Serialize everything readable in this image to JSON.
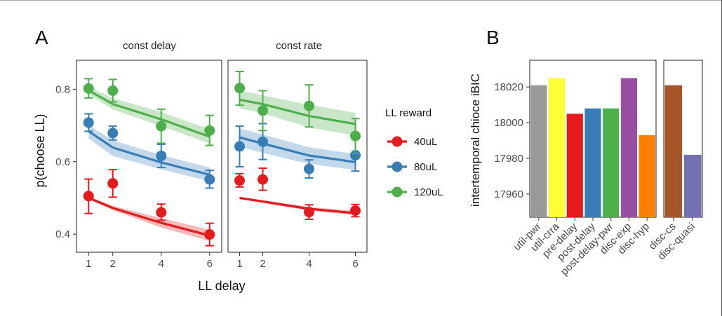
{
  "chart_data": [
    {
      "type": "line",
      "panel_label": "A",
      "facets": [
        "const delay",
        "const rate"
      ],
      "xlabel": "LL delay",
      "ylabel": "p(choose LL)",
      "x_ticks": [
        1,
        2,
        4,
        6
      ],
      "y_ticks": [
        0.4,
        0.6,
        0.8
      ],
      "xlim": [
        0.5,
        6.5
      ],
      "ylim": [
        0.35,
        0.88
      ],
      "legend_title": "LL reward",
      "legend_position": "right",
      "series": [
        {
          "name": "40uL",
          "color": "#e41a1c",
          "facets": [
            {
              "facet": "const delay",
              "points": [
                {
                  "x": 1,
                  "y": 0.505,
                  "lo": 0.457,
                  "hi": 0.552
                },
                {
                  "x": 2,
                  "y": 0.54,
                  "lo": 0.502,
                  "hi": 0.578
                },
                {
                  "x": 4,
                  "y": 0.46,
                  "lo": 0.438,
                  "hi": 0.483
                },
                {
                  "x": 6,
                  "y": 0.399,
                  "lo": 0.368,
                  "hi": 0.43
                }
              ],
              "fit": [
                {
                  "x": 1,
                  "y": 0.5,
                  "lo": 0.497,
                  "hi": 0.504
                },
                {
                  "x": 2,
                  "y": 0.472,
                  "lo": 0.466,
                  "hi": 0.478
                },
                {
                  "x": 4,
                  "y": 0.431,
                  "lo": 0.418,
                  "hi": 0.444
                },
                {
                  "x": 6,
                  "y": 0.396,
                  "lo": 0.381,
                  "hi": 0.412
                }
              ]
            },
            {
              "facet": "const rate",
              "points": [
                {
                  "x": 1,
                  "y": 0.548,
                  "lo": 0.53,
                  "hi": 0.567
                },
                {
                  "x": 2,
                  "y": 0.551,
                  "lo": 0.521,
                  "hi": 0.582
                },
                {
                  "x": 4,
                  "y": 0.461,
                  "lo": 0.441,
                  "hi": 0.481
                },
                {
                  "x": 6,
                  "y": 0.465,
                  "lo": 0.448,
                  "hi": 0.482
                }
              ],
              "fit": [
                {
                  "x": 1,
                  "y": 0.5,
                  "lo": 0.497,
                  "hi": 0.503
                },
                {
                  "x": 2,
                  "y": 0.49,
                  "lo": 0.486,
                  "hi": 0.494
                },
                {
                  "x": 4,
                  "y": 0.47,
                  "lo": 0.465,
                  "hi": 0.475
                },
                {
                  "x": 6,
                  "y": 0.458,
                  "lo": 0.452,
                  "hi": 0.464
                }
              ]
            }
          ]
        },
        {
          "name": "80uL",
          "color": "#377eb8",
          "facets": [
            {
              "facet": "const delay",
              "points": [
                {
                  "x": 1,
                  "y": 0.708,
                  "lo": 0.684,
                  "hi": 0.732
                },
                {
                  "x": 2,
                  "y": 0.679,
                  "lo": 0.66,
                  "hi": 0.698
                },
                {
                  "x": 4,
                  "y": 0.616,
                  "lo": 0.584,
                  "hi": 0.648
                },
                {
                  "x": 6,
                  "y": 0.551,
                  "lo": 0.527,
                  "hi": 0.576
                }
              ],
              "fit": [
                {
                  "x": 1,
                  "y": 0.684,
                  "lo": 0.664,
                  "hi": 0.701
                },
                {
                  "x": 2,
                  "y": 0.639,
                  "lo": 0.616,
                  "hi": 0.659
                },
                {
                  "x": 4,
                  "y": 0.598,
                  "lo": 0.579,
                  "hi": 0.618
                },
                {
                  "x": 6,
                  "y": 0.564,
                  "lo": 0.546,
                  "hi": 0.584
                }
              ]
            },
            {
              "facet": "const rate",
              "points": [
                {
                  "x": 1,
                  "y": 0.642,
                  "lo": 0.586,
                  "hi": 0.698
                },
                {
                  "x": 2,
                  "y": 0.655,
                  "lo": 0.606,
                  "hi": 0.705
                },
                {
                  "x": 4,
                  "y": 0.58,
                  "lo": 0.555,
                  "hi": 0.605
                },
                {
                  "x": 6,
                  "y": 0.618,
                  "lo": 0.574,
                  "hi": 0.663
                }
              ],
              "fit": [
                {
                  "x": 1,
                  "y": 0.667,
                  "lo": 0.641,
                  "hi": 0.692
                },
                {
                  "x": 2,
                  "y": 0.65,
                  "lo": 0.624,
                  "hi": 0.675
                },
                {
                  "x": 4,
                  "y": 0.617,
                  "lo": 0.594,
                  "hi": 0.64
                },
                {
                  "x": 6,
                  "y": 0.599,
                  "lo": 0.577,
                  "hi": 0.621
                }
              ]
            }
          ]
        },
        {
          "name": "120uL",
          "color": "#4daf4a",
          "facets": [
            {
              "facet": "const delay",
              "points": [
                {
                  "x": 1,
                  "y": 0.802,
                  "lo": 0.776,
                  "hi": 0.829
                },
                {
                  "x": 2,
                  "y": 0.796,
                  "lo": 0.765,
                  "hi": 0.827
                },
                {
                  "x": 4,
                  "y": 0.698,
                  "lo": 0.651,
                  "hi": 0.745
                },
                {
                  "x": 6,
                  "y": 0.686,
                  "lo": 0.645,
                  "hi": 0.728
                }
              ],
              "fit": [
                {
                  "x": 1,
                  "y": 0.797,
                  "lo": 0.786,
                  "hi": 0.808
                },
                {
                  "x": 2,
                  "y": 0.759,
                  "lo": 0.744,
                  "hi": 0.775
                },
                {
                  "x": 4,
                  "y": 0.717,
                  "lo": 0.698,
                  "hi": 0.737
                },
                {
                  "x": 6,
                  "y": 0.669,
                  "lo": 0.65,
                  "hi": 0.689
                }
              ]
            },
            {
              "facet": "const rate",
              "points": [
                {
                  "x": 1,
                  "y": 0.803,
                  "lo": 0.756,
                  "hi": 0.849
                },
                {
                  "x": 2,
                  "y": 0.741,
                  "lo": 0.686,
                  "hi": 0.796
                },
                {
                  "x": 4,
                  "y": 0.754,
                  "lo": 0.696,
                  "hi": 0.812
                },
                {
                  "x": 6,
                  "y": 0.671,
                  "lo": 0.623,
                  "hi": 0.719
                }
              ],
              "fit": [
                {
                  "x": 1,
                  "y": 0.771,
                  "lo": 0.747,
                  "hi": 0.797
                },
                {
                  "x": 2,
                  "y": 0.759,
                  "lo": 0.734,
                  "hi": 0.783
                },
                {
                  "x": 4,
                  "y": 0.726,
                  "lo": 0.694,
                  "hi": 0.757
                },
                {
                  "x": 6,
                  "y": 0.704,
                  "lo": 0.672,
                  "hi": 0.735
                }
              ]
            }
          ]
        }
      ]
    },
    {
      "type": "bar",
      "panel_label": "B",
      "ylabel": "intertemporal chioce iBIC",
      "y_ticks": [
        17960,
        17980,
        18000,
        18020
      ],
      "ylim": [
        17947,
        18035
      ],
      "groups": [
        {
          "categories": [
            "util-pwr",
            "util-crra",
            "pre-delay",
            "post-delay",
            "post-delay-pwr",
            "disc-exp",
            "disc-hyp"
          ],
          "values": [
            18021,
            18025,
            18005,
            18008,
            18008,
            18025,
            17993
          ],
          "colors": [
            "#999999",
            "#ffff33",
            "#e41a1c",
            "#377eb8",
            "#4daf4a",
            "#984ea3",
            "#ff7f00"
          ]
        },
        {
          "categories": [
            "disc-cs",
            "disc-quasi"
          ],
          "values": [
            18021,
            17982
          ],
          "colors": [
            "#a65628",
            "#7570b3"
          ]
        }
      ]
    }
  ]
}
